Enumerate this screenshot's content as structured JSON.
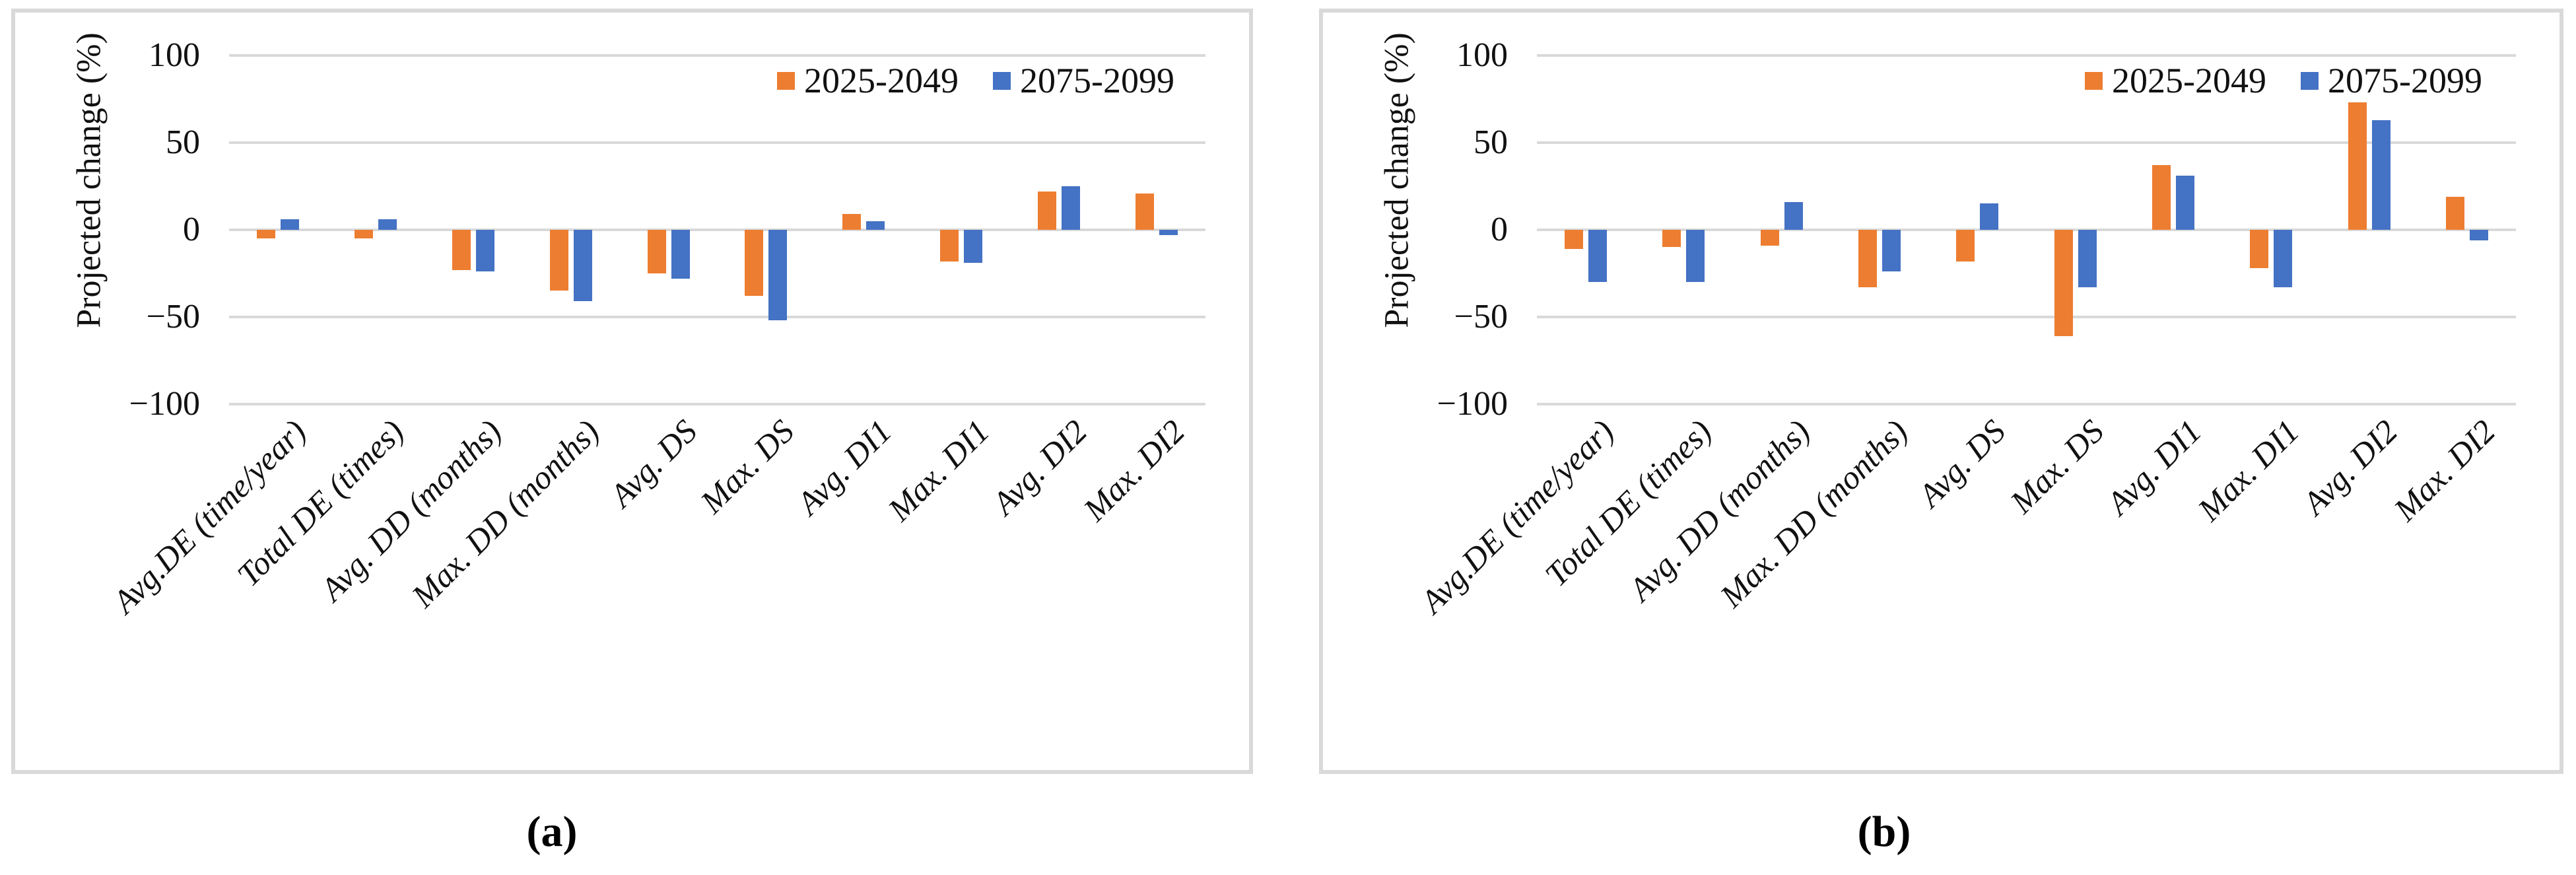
{
  "figure": {
    "captions": {
      "a": "(a)",
      "b": "(b)"
    }
  },
  "styles": {
    "background": "#FFFFFF",
    "grid_color": "#D9D9D9",
    "panel_border_color": "#D9D9D9",
    "text_color": "#111111",
    "series_orange": "#ED7D31",
    "series_blue": "#4472C4"
  },
  "chart_data": [
    {
      "id": "a",
      "type": "bar",
      "caption": "(a)",
      "title": "",
      "xlabel": "",
      "ylabel": "Projected change (%)",
      "ylim": [
        -100,
        100
      ],
      "yticks": [
        {
          "value": 100,
          "label": "100"
        },
        {
          "value": 50,
          "label": "50"
        },
        {
          "value": 0,
          "label": "0"
        },
        {
          "value": -50,
          "label": "−50"
        },
        {
          "value": -100,
          "label": "−100"
        }
      ],
      "grid": true,
      "legend_position": "top-right",
      "categories": [
        "Avg.DE (time/year)",
        "Total DE (times)",
        "Avg. DD (months)",
        "Max. DD (months)",
        "Avg. DS",
        "Max. DS",
        "Avg. DI1",
        "Max. DI1",
        "Avg. DI2",
        "Max. DI2"
      ],
      "series": [
        {
          "name": "2025-2049",
          "color": "#ED7D31",
          "values": [
            -5,
            -5,
            -23,
            -35,
            -25,
            -38,
            9,
            -18,
            22,
            21
          ]
        },
        {
          "name": "2075-2099",
          "color": "#4472C4",
          "values": [
            6,
            6,
            -24,
            -41,
            -28,
            -52,
            5,
            -19,
            25,
            -3
          ]
        }
      ]
    },
    {
      "id": "b",
      "type": "bar",
      "caption": "(b)",
      "title": "",
      "xlabel": "",
      "ylabel": "Projected change (%)",
      "ylim": [
        -100,
        100
      ],
      "yticks": [
        {
          "value": 100,
          "label": "100"
        },
        {
          "value": 50,
          "label": "50"
        },
        {
          "value": 0,
          "label": "0"
        },
        {
          "value": -50,
          "label": "−50"
        },
        {
          "value": -100,
          "label": "−100"
        }
      ],
      "grid": true,
      "legend_position": "top-right",
      "categories": [
        "Avg.DE (time/year)",
        "Total DE (times)",
        "Avg. DD (months)",
        "Max. DD (months)",
        "Avg. DS",
        "Max. DS",
        "Avg. DI1",
        "Max. DI1",
        "Avg. DI2",
        "Max. DI2"
      ],
      "series": [
        {
          "name": "2025-2049",
          "color": "#ED7D31",
          "values": [
            -11,
            -10,
            -9,
            -33,
            -18,
            -61,
            37,
            -22,
            73,
            19
          ]
        },
        {
          "name": "2075-2099",
          "color": "#4472C4",
          "values": [
            -30,
            -30,
            16,
            -24,
            15,
            -33,
            31,
            -33,
            63,
            -6
          ]
        }
      ]
    }
  ]
}
